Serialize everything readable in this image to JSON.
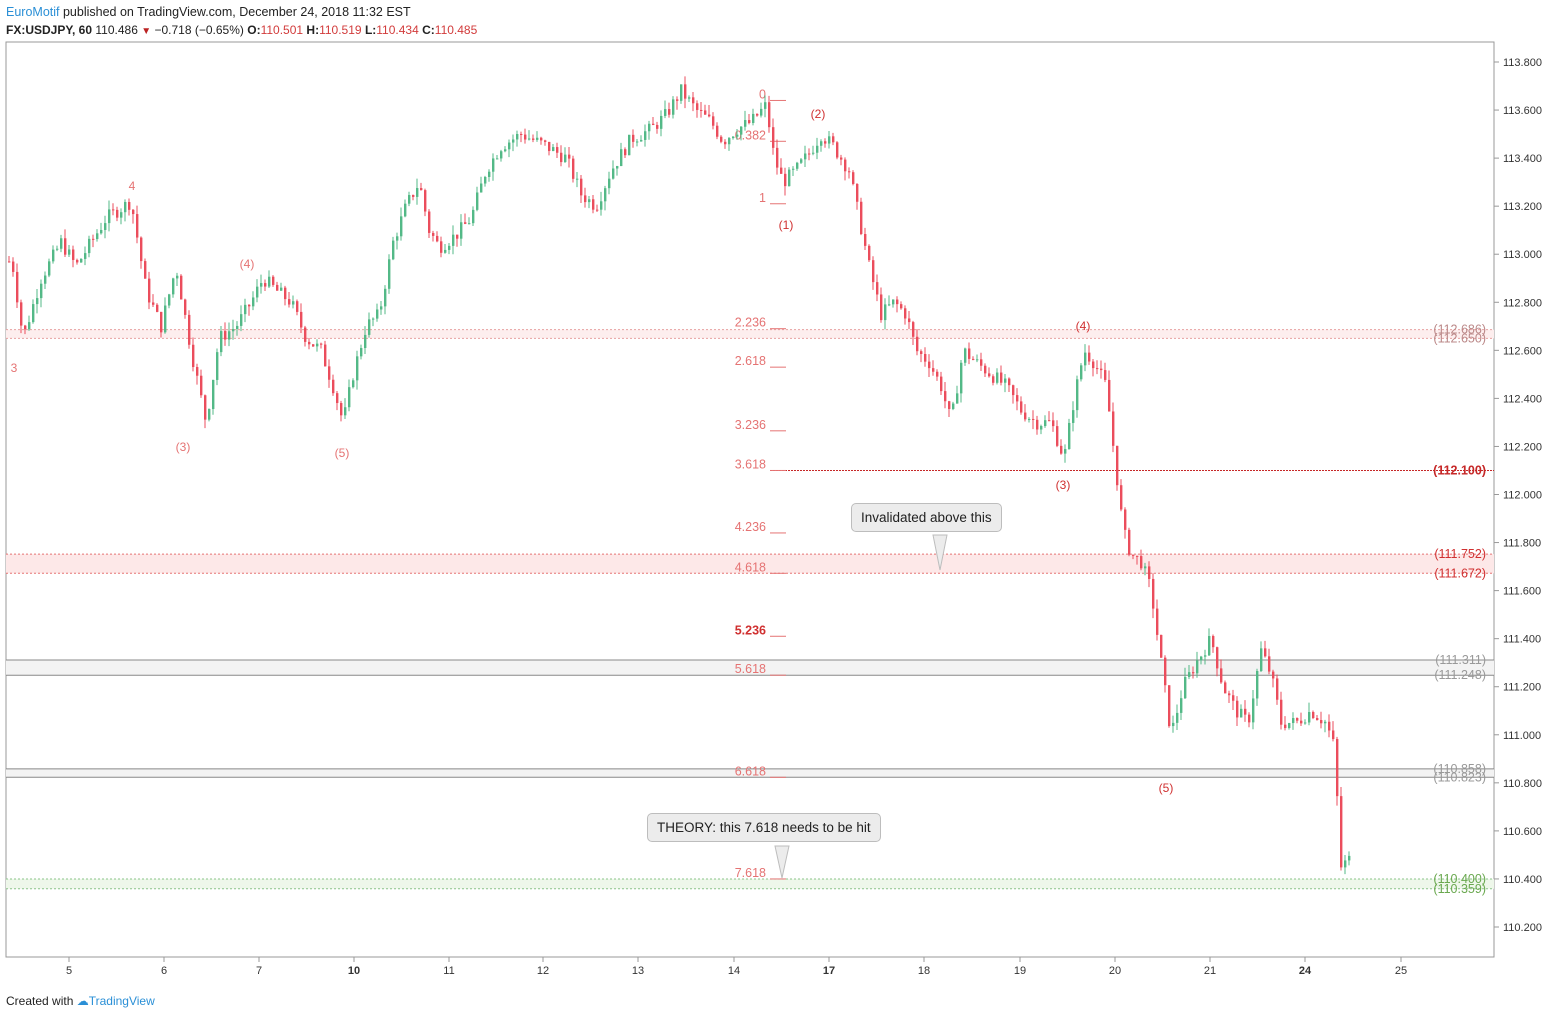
{
  "header": {
    "publisher": "EuroMotif",
    "published_text": " published on TradingView.com, December 24, 2018 11:32 EST",
    "symbol": "FX:USDJPY, 60",
    "last": "110.486",
    "change": "−0.718 (−0.65%)",
    "o_label": "O:",
    "o_value": "110.501",
    "h_label": "H:",
    "h_value": "110.519",
    "l_label": "L:",
    "l_value": "110.434",
    "c_label": "C:",
    "c_value": "110.485"
  },
  "footer": {
    "created_with": "Created with",
    "brand": "TradingView"
  },
  "colors": {
    "up": "#53b987",
    "down": "#eb4d5c",
    "fib": "#e57373",
    "grey": "#9e9e9e",
    "green": "#6aa84f",
    "dark_red": "#c62828"
  },
  "chart_data": {
    "type": "candlestick",
    "title": "",
    "xlabel": "",
    "ylabel": "",
    "ylim": [
      110.09,
      113.88
    ],
    "y_ticks": [
      "113.800",
      "113.600",
      "113.400",
      "113.200",
      "113.000",
      "112.800",
      "112.600",
      "112.400",
      "112.200",
      "112.000",
      "111.800",
      "111.600",
      "111.400",
      "111.200",
      "111.000",
      "110.800",
      "110.600",
      "110.400",
      "110.200"
    ],
    "x_ticks": [
      {
        "label": "5",
        "bold": false
      },
      {
        "label": "6",
        "bold": false
      },
      {
        "label": "7",
        "bold": false
      },
      {
        "label": "10",
        "bold": true
      },
      {
        "label": "11",
        "bold": false
      },
      {
        "label": "12",
        "bold": false
      },
      {
        "label": "13",
        "bold": false
      },
      {
        "label": "14",
        "bold": false
      },
      {
        "label": "17",
        "bold": true
      },
      {
        "label": "18",
        "bold": false
      },
      {
        "label": "19",
        "bold": false
      },
      {
        "label": "20",
        "bold": false
      },
      {
        "label": "21",
        "bold": false
      },
      {
        "label": "24",
        "bold": true
      },
      {
        "label": "25",
        "bold": false
      }
    ],
    "price_path": [
      [
        0,
        112.85
      ],
      [
        10,
        113.0
      ],
      [
        22,
        112.65
      ],
      [
        40,
        112.9
      ],
      [
        60,
        113.05
      ],
      [
        75,
        112.95
      ],
      [
        90,
        113.05
      ],
      [
        105,
        113.15
      ],
      [
        130,
        113.22
      ],
      [
        145,
        112.85
      ],
      [
        160,
        112.7
      ],
      [
        175,
        112.95
      ],
      [
        190,
        112.6
      ],
      [
        205,
        112.3
      ],
      [
        218,
        112.65
      ],
      [
        235,
        112.7
      ],
      [
        250,
        112.8
      ],
      [
        262,
        112.9
      ],
      [
        275,
        112.85
      ],
      [
        290,
        112.8
      ],
      [
        305,
        112.65
      ],
      [
        320,
        112.6
      ],
      [
        332,
        112.45
      ],
      [
        342,
        112.3
      ],
      [
        352,
        112.5
      ],
      [
        365,
        112.7
      ],
      [
        378,
        112.75
      ],
      [
        392,
        113.05
      ],
      [
        405,
        113.2
      ],
      [
        418,
        113.3
      ],
      [
        428,
        113.1
      ],
      [
        438,
        113.03
      ],
      [
        455,
        113.08
      ],
      [
        470,
        113.15
      ],
      [
        485,
        113.35
      ],
      [
        500,
        113.45
      ],
      [
        520,
        113.5
      ],
      [
        545,
        113.45
      ],
      [
        565,
        113.4
      ],
      [
        580,
        113.25
      ],
      [
        595,
        113.2
      ],
      [
        610,
        113.35
      ],
      [
        630,
        113.48
      ],
      [
        650,
        113.52
      ],
      [
        665,
        113.58
      ],
      [
        680,
        113.68
      ],
      [
        695,
        113.6
      ],
      [
        710,
        113.55
      ],
      [
        722,
        113.47
      ],
      [
        735,
        113.52
      ],
      [
        750,
        113.55
      ],
      [
        765,
        113.62
      ],
      [
        773,
        113.4
      ],
      [
        782,
        113.3
      ],
      [
        795,
        113.35
      ],
      [
        808,
        113.42
      ],
      [
        820,
        113.5
      ],
      [
        832,
        113.45
      ],
      [
        848,
        113.35
      ],
      [
        858,
        113.15
      ],
      [
        868,
        112.95
      ],
      [
        880,
        112.75
      ],
      [
        893,
        112.8
      ],
      [
        905,
        112.75
      ],
      [
        915,
        112.6
      ],
      [
        928,
        112.55
      ],
      [
        940,
        112.45
      ],
      [
        950,
        112.3
      ],
      [
        962,
        112.6
      ],
      [
        975,
        112.55
      ],
      [
        990,
        112.5
      ],
      [
        1005,
        112.45
      ],
      [
        1020,
        112.35
      ],
      [
        1035,
        112.3
      ],
      [
        1050,
        112.3
      ],
      [
        1063,
        112.15
      ],
      [
        1073,
        112.4
      ],
      [
        1083,
        112.6
      ],
      [
        1093,
        112.55
      ],
      [
        1105,
        112.45
      ],
      [
        1115,
        112.1
      ],
      [
        1122,
        111.85
      ],
      [
        1130,
        111.75
      ],
      [
        1140,
        111.72
      ],
      [
        1150,
        111.6
      ],
      [
        1160,
        111.3
      ],
      [
        1170,
        111.0
      ],
      [
        1182,
        111.2
      ],
      [
        1195,
        111.3
      ],
      [
        1210,
        111.4
      ],
      [
        1222,
        111.2
      ],
      [
        1235,
        111.1
      ],
      [
        1247,
        111.05
      ],
      [
        1260,
        111.35
      ],
      [
        1270,
        111.25
      ],
      [
        1280,
        111.05
      ],
      [
        1295,
        111.05
      ],
      [
        1310,
        111.1
      ],
      [
        1325,
        111.05
      ],
      [
        1333,
        110.95
      ],
      [
        1340,
        110.45
      ],
      [
        1348,
        110.48
      ]
    ],
    "fib_levels": [
      {
        "label": "0",
        "value": 113.64
      },
      {
        "label": "0.382",
        "value": 113.47
      },
      {
        "label": "1",
        "value": 113.21
      },
      {
        "label": "2.236",
        "value": 112.69
      },
      {
        "label": "2.618",
        "value": 112.53
      },
      {
        "label": "3.236",
        "value": 112.265
      },
      {
        "label": "3.618",
        "value": 112.1
      },
      {
        "label": "4.236",
        "value": 111.84
      },
      {
        "label": "4.618",
        "value": 111.672
      },
      {
        "label": "5.236",
        "value": 111.41
      },
      {
        "label": "5.618",
        "value": 111.248
      },
      {
        "label": "6.618",
        "value": 110.823
      },
      {
        "label": "7.618",
        "value": 110.4
      }
    ],
    "horizontal_levels": [
      {
        "label": "(112.686)",
        "value": 112.686,
        "style": "grey-red"
      },
      {
        "label": "(112.650)",
        "value": 112.65,
        "style": "grey-red"
      },
      {
        "label": "(112.100)",
        "value": 112.1,
        "style": "dark-red"
      },
      {
        "label": "(111.752)",
        "value": 111.752,
        "style": "red"
      },
      {
        "label": "(111.672)",
        "value": 111.672,
        "style": "red"
      },
      {
        "label": "(111.311)",
        "value": 111.311,
        "style": "grey"
      },
      {
        "label": "(111.248)",
        "value": 111.248,
        "style": "grey"
      },
      {
        "label": "(110.858)",
        "value": 110.858,
        "style": "grey"
      },
      {
        "label": "(110.823)",
        "value": 110.823,
        "style": "grey"
      },
      {
        "label": "(110.400)",
        "value": 110.4,
        "style": "green"
      },
      {
        "label": "(110.359)",
        "value": 110.359,
        "style": "green"
      }
    ],
    "wave_labels": [
      {
        "text": "3"
      },
      {
        "text": "4"
      },
      {
        "text": "(3)"
      },
      {
        "text": "(4)"
      },
      {
        "text": "(5)"
      },
      {
        "text": "(1)"
      },
      {
        "text": "(2)"
      },
      {
        "text": "(4)"
      },
      {
        "text": "(3)"
      },
      {
        "text": "(5)"
      }
    ],
    "annotations": [
      {
        "text": "Invalidated above this"
      },
      {
        "text": "THEORY: this 7.618 needs to be hit"
      }
    ]
  }
}
